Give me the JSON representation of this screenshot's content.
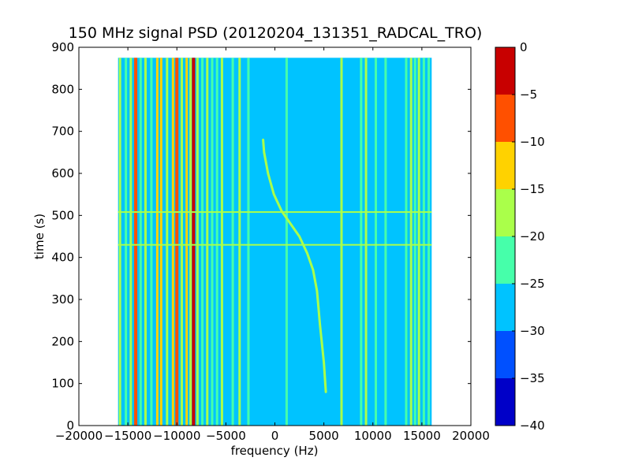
{
  "chart_data": {
    "type": "heatmap",
    "title": "150 MHz signal PSD (20120204_131351_RADCAL_TRO)",
    "xlabel": "frequency (Hz)",
    "ylabel": "time (s)",
    "xlim": [
      -20000,
      20000
    ],
    "ylim": [
      0,
      900
    ],
    "x_ticks": [
      -20000,
      -15000,
      -10000,
      -5000,
      0,
      5000,
      10000,
      15000,
      20000
    ],
    "x_tick_labels": [
      "−20000",
      "−15000",
      "−10000",
      "−5000",
      "0",
      "5000",
      "10000",
      "15000",
      "20000"
    ],
    "y_ticks": [
      0,
      100,
      200,
      300,
      400,
      500,
      600,
      700,
      800,
      900
    ],
    "y_tick_labels": [
      "0",
      "100",
      "200",
      "300",
      "400",
      "500",
      "600",
      "700",
      "800",
      "900"
    ],
    "data_extent": {
      "x": [
        -16000,
        16000
      ],
      "y": [
        0,
        875
      ]
    },
    "background_level": -27.5,
    "colorbar": {
      "levels": [
        0,
        -5,
        -10,
        -15,
        -20,
        -25,
        -30,
        -35,
        -40
      ],
      "level_labels": [
        "0",
        "−5",
        "−10",
        "−15",
        "−20",
        "−25",
        "−30",
        "−35",
        "−40"
      ],
      "colors": [
        "#800000",
        "#c80000",
        "#ff5000",
        "#ffd200",
        "#aaff4a",
        "#46ffaa",
        "#00c3ff",
        "#0050ff",
        "#0000c8"
      ]
    },
    "vertical_lines": [
      {
        "x": -15800,
        "level": -17.5
      },
      {
        "x": -15200,
        "level": -22.5
      },
      {
        "x": -14700,
        "level": -17.5
      },
      {
        "x": -14200,
        "level": -7.5
      },
      {
        "x": -13700,
        "level": -22.5
      },
      {
        "x": -13200,
        "level": -17.5
      },
      {
        "x": -12600,
        "level": -22.5
      },
      {
        "x": -12000,
        "level": -12.5
      },
      {
        "x": -11600,
        "level": -12.5
      },
      {
        "x": -11000,
        "level": -17.5
      },
      {
        "x": -10400,
        "level": -12.5
      },
      {
        "x": -10000,
        "level": -7.5
      },
      {
        "x": -9500,
        "level": -17.5
      },
      {
        "x": -9000,
        "level": -12.5
      },
      {
        "x": -8600,
        "level": -17.5
      },
      {
        "x": -8300,
        "level": -2.5
      },
      {
        "x": -7900,
        "level": -17.5
      },
      {
        "x": -7400,
        "level": -22.5
      },
      {
        "x": -6900,
        "level": -17.5
      },
      {
        "x": -6400,
        "level": -22.5
      },
      {
        "x": -5900,
        "level": -22.5
      },
      {
        "x": -5400,
        "level": -17.5
      },
      {
        "x": -4300,
        "level": -22.5
      },
      {
        "x": -3600,
        "level": -17.5
      },
      {
        "x": -2700,
        "level": -22.5
      },
      {
        "x": 1200,
        "level": -22.5
      },
      {
        "x": 6800,
        "level": -17.5
      },
      {
        "x": 8800,
        "level": -22.5
      },
      {
        "x": 9300,
        "level": -17.5
      },
      {
        "x": 10300,
        "level": -22.5
      },
      {
        "x": 11300,
        "level": -22.5
      },
      {
        "x": 13400,
        "level": -22.5
      },
      {
        "x": 13900,
        "level": -17.5
      },
      {
        "x": 14300,
        "level": -22.5
      },
      {
        "x": 14700,
        "level": -17.5
      },
      {
        "x": 15200,
        "level": -22.5
      },
      {
        "x": 15700,
        "level": -22.5
      }
    ],
    "horizontal_lines": [
      {
        "y": 508,
        "level": -17.5
      },
      {
        "y": 430,
        "level": -17.5
      }
    ],
    "doppler_track": {
      "level": -17.5,
      "points": [
        {
          "x": 5200,
          "y": 80
        },
        {
          "x": 5000,
          "y": 150
        },
        {
          "x": 4600,
          "y": 240
        },
        {
          "x": 4300,
          "y": 320
        },
        {
          "x": 3900,
          "y": 370
        },
        {
          "x": 3300,
          "y": 410
        },
        {
          "x": 2500,
          "y": 450
        },
        {
          "x": 1600,
          "y": 480
        },
        {
          "x": 700,
          "y": 510
        },
        {
          "x": -100,
          "y": 550
        },
        {
          "x": -700,
          "y": 600
        },
        {
          "x": -1100,
          "y": 650
        },
        {
          "x": -1200,
          "y": 680
        }
      ]
    }
  }
}
